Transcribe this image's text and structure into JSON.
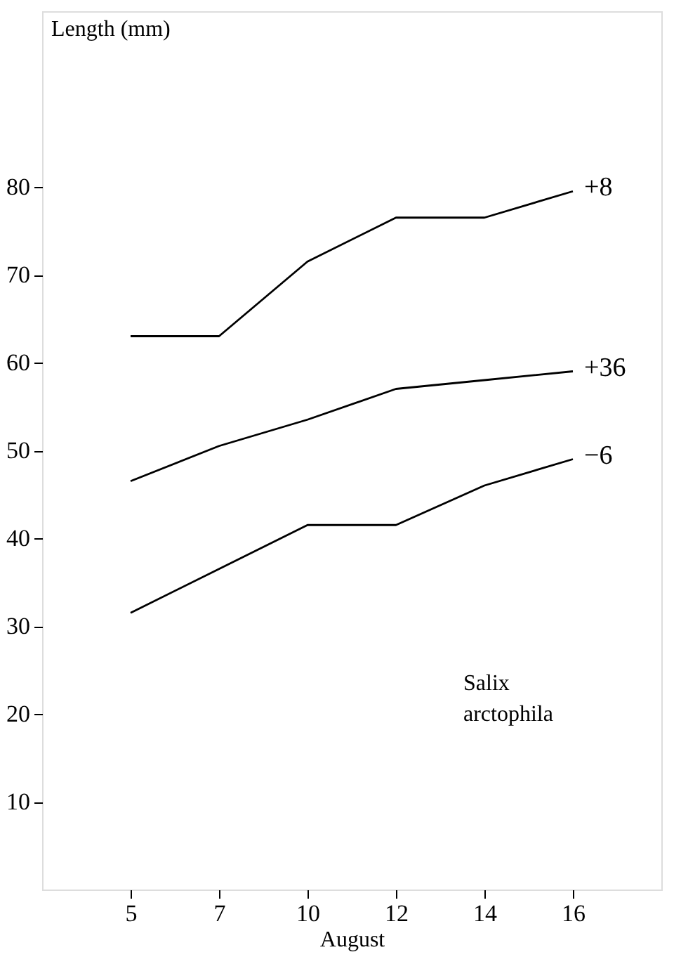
{
  "chart_data": {
    "type": "line",
    "xlabel": "August",
    "ylabel": "Length (mm)",
    "categories": [
      "5",
      "7",
      "10",
      "12",
      "14",
      "16"
    ],
    "series": [
      {
        "name": "+8",
        "color": "#000000",
        "values": [
          63,
          63,
          71.5,
          76.5,
          76.5,
          79.5
        ]
      },
      {
        "name": "+36",
        "color": "#000000",
        "values": [
          46.5,
          50.5,
          53.5,
          57,
          58,
          59
        ]
      },
      {
        "name": "−6",
        "color": "#000000",
        "values": [
          31.5,
          36.5,
          41.5,
          41.5,
          46,
          49
        ]
      }
    ],
    "ylim": [
      0,
      100
    ],
    "yticks": [
      10,
      20,
      30,
      40,
      50,
      60,
      70,
      80
    ],
    "annotations": [
      "Salix arctophila"
    ],
    "grid": false,
    "legend": false,
    "marker": "none",
    "line_style": "solid"
  }
}
